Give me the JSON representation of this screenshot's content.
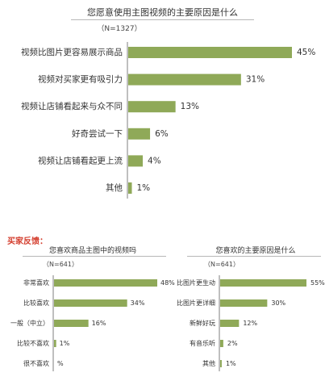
{
  "colors": {
    "bar": "#8fa958",
    "axis": "#7f7f7f",
    "section_label": "#d43f2f",
    "text": "#333333"
  },
  "section_label": "买家反馈：",
  "chart_data": [
    {
      "type": "bar",
      "orientation": "horizontal",
      "title": "您愿意使用主图视频的主要原因是什么",
      "subtitle": "（N=1327）",
      "categories": [
        "视频比图片更容易展示商品",
        "视频对买家更有吸引力",
        "视频让店铺看起来与众不同",
        "好奇尝试一下",
        "视频让店铺看起更上流",
        "其他"
      ],
      "values": [
        45,
        31,
        13,
        6,
        4,
        1
      ],
      "value_labels": [
        "45%",
        "31%",
        "13%",
        "6%",
        "4%",
        "1%"
      ],
      "xlim": [
        0,
        45
      ],
      "grid": false,
      "legend": "none"
    },
    {
      "type": "bar",
      "orientation": "horizontal",
      "title": "您喜欢商品主图中的视频吗",
      "subtitle": "（N=641）",
      "categories": [
        "非常喜欢",
        "比较喜欢",
        "一般（中立）",
        "比较不喜欢",
        "很不喜欢"
      ],
      "values": [
        48,
        34,
        16,
        1,
        0
      ],
      "value_labels": [
        "48%",
        "34%",
        "16%",
        "1%",
        "%"
      ],
      "xlim": [
        0,
        48
      ],
      "grid": false,
      "legend": "none"
    },
    {
      "type": "bar",
      "orientation": "horizontal",
      "title": "您喜欢的主要原因是什么",
      "subtitle": "（N=641）",
      "categories": [
        "比图片更生动",
        "比图片更详细",
        "新鲜好玩",
        "有音乐听",
        "其他"
      ],
      "values": [
        55,
        30,
        12,
        2,
        1
      ],
      "value_labels": [
        "55%",
        "30%",
        "12%",
        "2%",
        "1%"
      ],
      "xlim": [
        0,
        55
      ],
      "grid": false,
      "legend": "none"
    }
  ]
}
